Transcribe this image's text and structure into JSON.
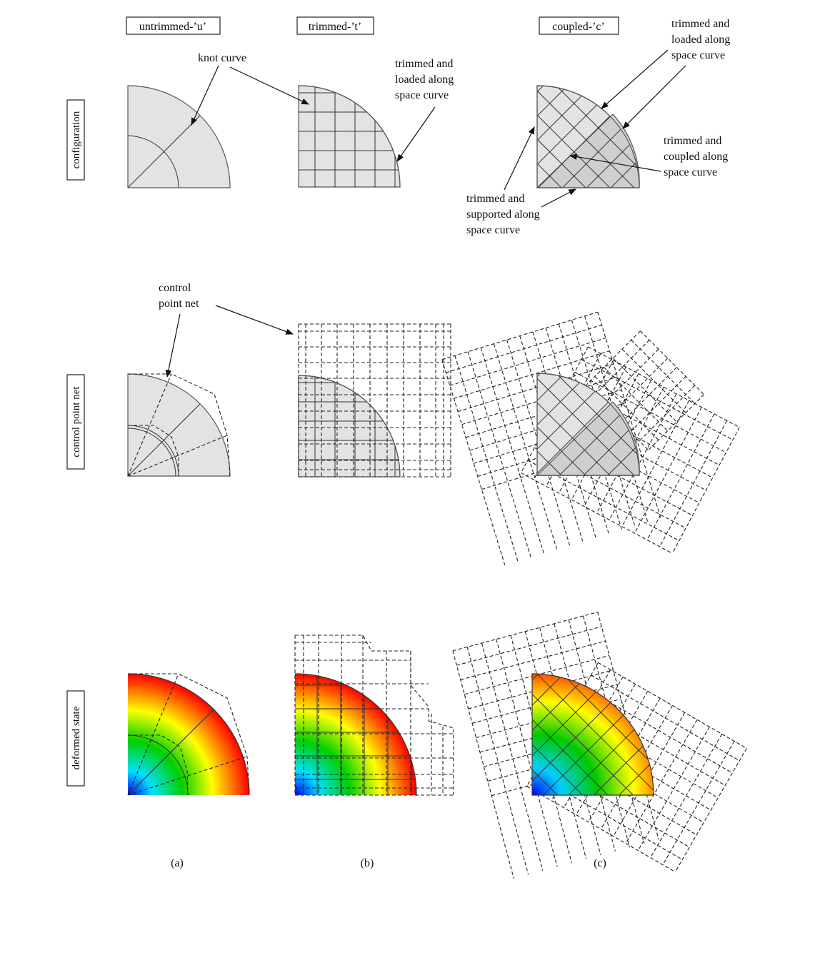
{
  "columns": {
    "u": {
      "header": "untrimmed-’u’",
      "caption": "(a)"
    },
    "t": {
      "header": "trimmed-’t’",
      "caption": "(b)"
    },
    "c": {
      "header": "coupled-’c’",
      "caption": "(c)"
    }
  },
  "rows": {
    "configuration": "configuration",
    "control_point_net": "control point net",
    "deformed_state": "deformed state"
  },
  "annotations": {
    "knot_curve": "knot curve",
    "trimmed_loaded": [
      "trimmed and",
      "loaded along",
      "space curve"
    ],
    "trimmed_loaded_c": [
      "trimmed and",
      "loaded along",
      "space curve"
    ],
    "trimmed_coupled": [
      "trimmed and",
      "coupled along",
      "space curve"
    ],
    "trimmed_supported": [
      "trimmed and",
      "supported along",
      "space curve"
    ],
    "control_point_net": [
      "control",
      "point net"
    ]
  },
  "colors": {
    "shape_fill": "#e3e3e3",
    "shape_fill_dark": "#cfcfcf",
    "colormap": [
      "#0000ff",
      "#00e0ff",
      "#00d000",
      "#ffff00",
      "#ff8000",
      "#ff0000"
    ]
  }
}
